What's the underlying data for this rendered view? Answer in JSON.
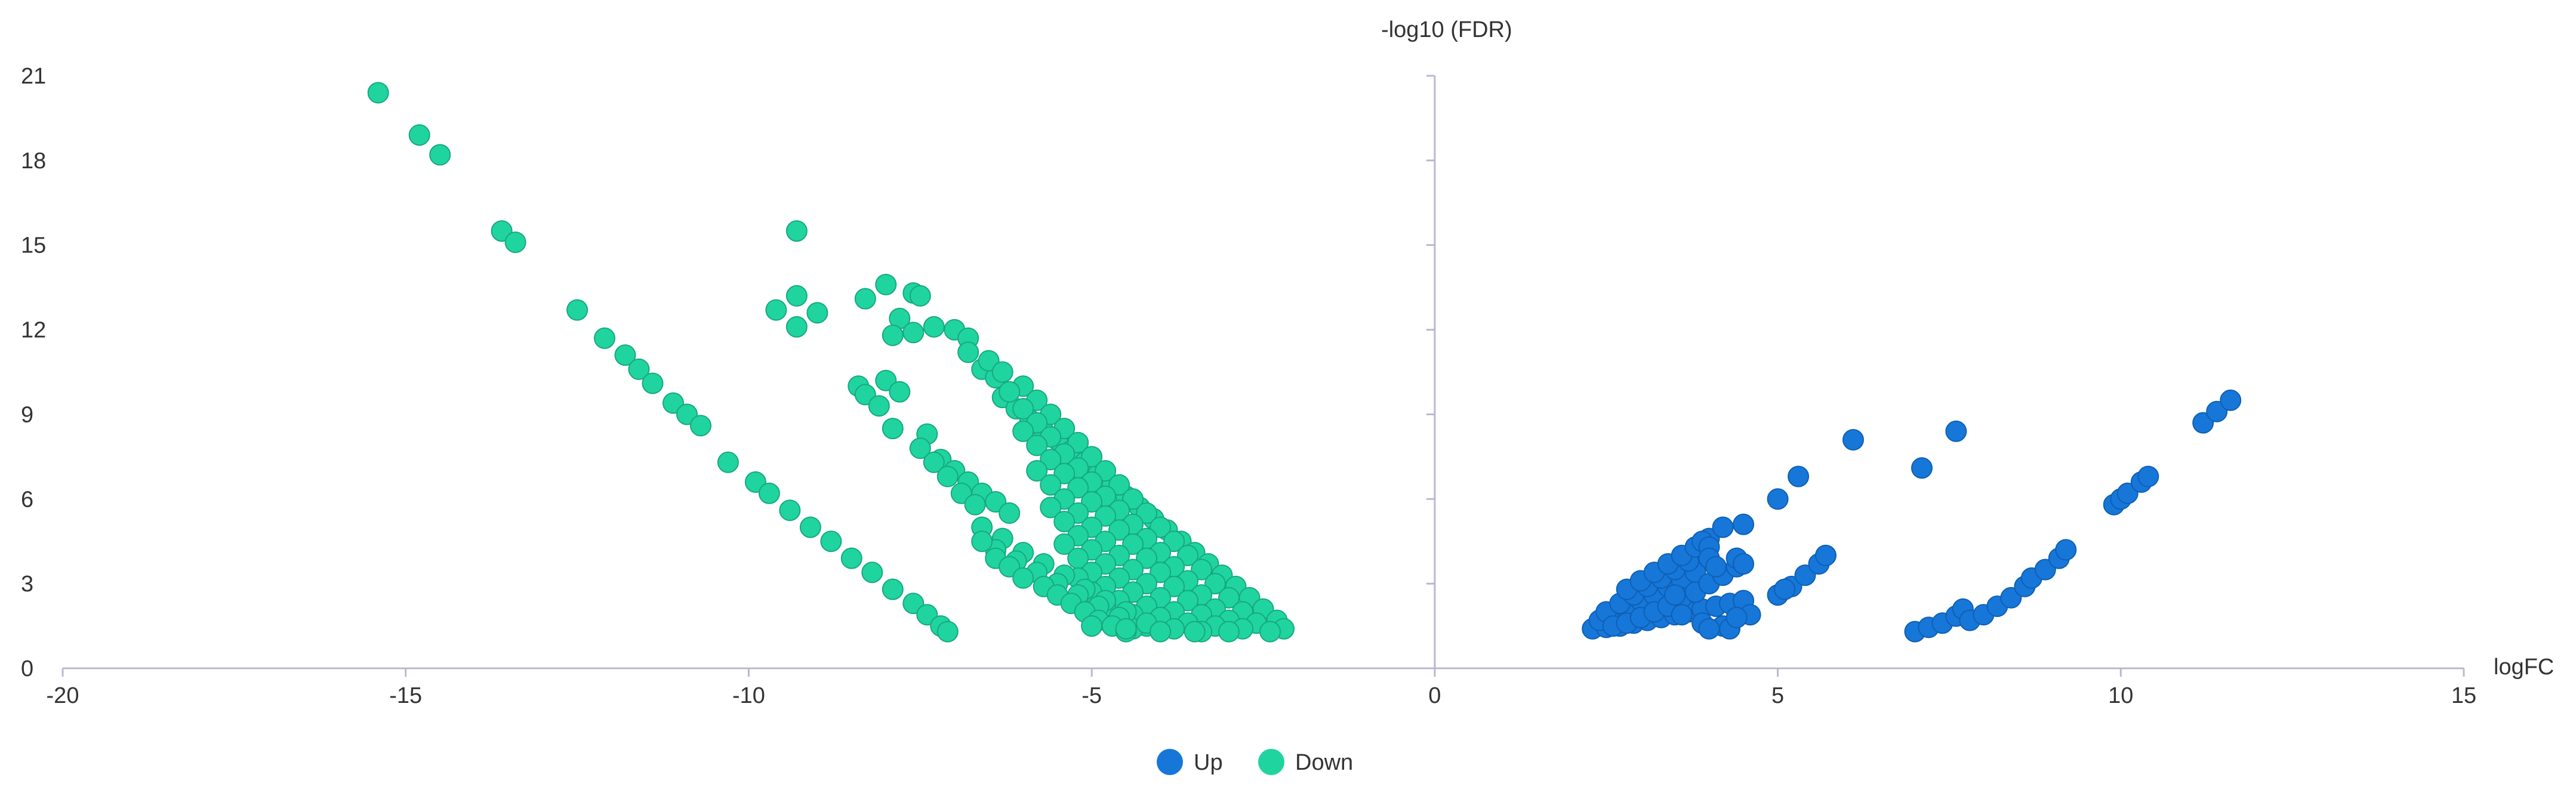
{
  "chart_data": {
    "type": "scatter",
    "xlabel": "logFC",
    "ylabel": "-log10 (FDR)",
    "xlim": [
      -20,
      15
    ],
    "ylim": [
      0,
      21
    ],
    "x_ticks": [
      -20,
      -15,
      -10,
      -5,
      0,
      5,
      10,
      15
    ],
    "y_ticks": [
      0,
      3,
      6,
      9,
      12,
      15,
      18,
      21
    ],
    "grid": false,
    "legend_position": "bottom-center",
    "series": [
      {
        "name": "Up",
        "color": "#1677d9",
        "points": [
          [
            2.3,
            1.4
          ],
          [
            2.5,
            1.45
          ],
          [
            2.7,
            1.5
          ],
          [
            2.9,
            1.6
          ],
          [
            3.1,
            1.7
          ],
          [
            3.3,
            1.8
          ],
          [
            3.5,
            1.9
          ],
          [
            3.7,
            2.0
          ],
          [
            3.9,
            2.1
          ],
          [
            4.1,
            2.2
          ],
          [
            4.3,
            2.3
          ],
          [
            4.5,
            2.4
          ],
          [
            2.4,
            1.7
          ],
          [
            2.6,
            1.9
          ],
          [
            2.8,
            2.1
          ],
          [
            3.0,
            2.4
          ],
          [
            3.2,
            2.6
          ],
          [
            3.4,
            2.9
          ],
          [
            3.6,
            3.1
          ],
          [
            3.8,
            3.4
          ],
          [
            2.5,
            2.0
          ],
          [
            2.7,
            2.3
          ],
          [
            2.9,
            2.6
          ],
          [
            3.1,
            2.9
          ],
          [
            3.3,
            3.2
          ],
          [
            3.5,
            3.5
          ],
          [
            3.7,
            3.8
          ],
          [
            2.6,
            1.5
          ],
          [
            2.8,
            1.6
          ],
          [
            3.0,
            1.8
          ],
          [
            3.2,
            2.0
          ],
          [
            3.4,
            2.2
          ],
          [
            3.6,
            2.5
          ],
          [
            3.8,
            2.7
          ],
          [
            4.0,
            3.0
          ],
          [
            4.2,
            3.3
          ],
          [
            4.4,
            3.6
          ],
          [
            2.8,
            2.8
          ],
          [
            3.0,
            3.1
          ],
          [
            3.2,
            3.4
          ],
          [
            3.4,
            3.7
          ],
          [
            3.6,
            4.0
          ],
          [
            3.8,
            4.3
          ],
          [
            4.0,
            4.6
          ],
          [
            3.9,
            4.5
          ],
          [
            4.0,
            4.3
          ],
          [
            4.0,
            3.9
          ],
          [
            4.1,
            3.6
          ],
          [
            3.5,
            2.6
          ],
          [
            3.6,
            1.9
          ],
          [
            3.9,
            1.6
          ],
          [
            4.2,
            1.5
          ],
          [
            4.3,
            1.4
          ],
          [
            4.0,
            1.4
          ],
          [
            4.5,
            5.1
          ],
          [
            4.2,
            5.0
          ],
          [
            4.4,
            3.9
          ],
          [
            4.5,
            3.7
          ],
          [
            4.6,
            1.9
          ],
          [
            4.4,
            1.8
          ],
          [
            5.0,
            6.0
          ],
          [
            5.3,
            6.8
          ],
          [
            6.1,
            8.1
          ],
          [
            7.6,
            8.4
          ],
          [
            7.1,
            7.1
          ],
          [
            5.0,
            2.6
          ],
          [
            5.2,
            2.9
          ],
          [
            5.4,
            3.3
          ],
          [
            5.6,
            3.7
          ],
          [
            5.7,
            4.0
          ],
          [
            5.1,
            2.8
          ],
          [
            7.0,
            1.3
          ],
          [
            7.2,
            1.45
          ],
          [
            7.4,
            1.6
          ],
          [
            7.6,
            1.85
          ],
          [
            7.7,
            2.1
          ],
          [
            7.8,
            1.7
          ],
          [
            8.0,
            1.9
          ],
          [
            8.2,
            2.2
          ],
          [
            8.4,
            2.5
          ],
          [
            8.6,
            2.9
          ],
          [
            8.7,
            3.2
          ],
          [
            8.9,
            3.5
          ],
          [
            9.1,
            3.9
          ],
          [
            9.2,
            4.2
          ],
          [
            9.9,
            5.8
          ],
          [
            10.0,
            6.0
          ],
          [
            10.1,
            6.2
          ],
          [
            10.3,
            6.6
          ],
          [
            10.4,
            6.8
          ],
          [
            11.2,
            8.7
          ],
          [
            11.4,
            9.1
          ],
          [
            11.6,
            9.5
          ]
        ]
      },
      {
        "name": "Down",
        "color": "#20d4a0",
        "points": [
          [
            -15.4,
            20.4
          ],
          [
            -14.8,
            18.9
          ],
          [
            -14.5,
            18.2
          ],
          [
            -13.6,
            15.5
          ],
          [
            -13.4,
            15.1
          ],
          [
            -12.5,
            12.7
          ],
          [
            -12.1,
            11.7
          ],
          [
            -11.8,
            11.1
          ],
          [
            -11.6,
            10.6
          ],
          [
            -11.4,
            10.1
          ],
          [
            -11.1,
            9.4
          ],
          [
            -10.9,
            9.0
          ],
          [
            -10.7,
            8.6
          ],
          [
            -10.3,
            7.3
          ],
          [
            -9.9,
            6.6
          ],
          [
            -9.7,
            6.2
          ],
          [
            -9.4,
            5.6
          ],
          [
            -9.1,
            5.0
          ],
          [
            -8.8,
            4.5
          ],
          [
            -8.5,
            3.9
          ],
          [
            -8.2,
            3.4
          ],
          [
            -7.9,
            2.8
          ],
          [
            -7.6,
            2.3
          ],
          [
            -7.4,
            1.9
          ],
          [
            -7.2,
            1.5
          ],
          [
            -7.1,
            1.3
          ],
          [
            -9.3,
            15.5
          ],
          [
            -9.6,
            12.7
          ],
          [
            -9.3,
            13.2
          ],
          [
            -9.0,
            12.6
          ],
          [
            -9.3,
            12.1
          ],
          [
            -8.3,
            13.1
          ],
          [
            -8.0,
            13.6
          ],
          [
            -7.8,
            12.4
          ],
          [
            -7.6,
            13.3
          ],
          [
            -7.5,
            13.2
          ],
          [
            -7.9,
            11.8
          ],
          [
            -7.6,
            11.9
          ],
          [
            -7.3,
            12.1
          ],
          [
            -7.0,
            12.0
          ],
          [
            -6.8,
            11.7
          ],
          [
            -8.4,
            10.0
          ],
          [
            -8.3,
            9.7
          ],
          [
            -8.0,
            10.2
          ],
          [
            -7.8,
            9.8
          ],
          [
            -8.1,
            9.3
          ],
          [
            -7.9,
            8.5
          ],
          [
            -7.4,
            8.3
          ],
          [
            -7.2,
            7.4
          ],
          [
            -7.0,
            7.0
          ],
          [
            -6.8,
            6.6
          ],
          [
            -6.6,
            6.2
          ],
          [
            -6.4,
            5.9
          ],
          [
            -6.2,
            5.5
          ],
          [
            -7.5,
            7.8
          ],
          [
            -7.3,
            7.3
          ],
          [
            -7.1,
            6.8
          ],
          [
            -6.9,
            6.2
          ],
          [
            -6.7,
            5.8
          ],
          [
            -6.8,
            11.2
          ],
          [
            -6.6,
            10.6
          ],
          [
            -6.4,
            10.3
          ],
          [
            -6.3,
            9.6
          ],
          [
            -6.1,
            9.2
          ],
          [
            -5.9,
            8.8
          ],
          [
            -5.7,
            8.4
          ],
          [
            -5.5,
            8.1
          ],
          [
            -5.3,
            7.7
          ],
          [
            -5.1,
            7.3
          ],
          [
            -4.9,
            6.9
          ],
          [
            -4.7,
            6.5
          ],
          [
            -4.5,
            6.1
          ],
          [
            -4.3,
            5.7
          ],
          [
            -4.1,
            5.3
          ],
          [
            -3.9,
            4.9
          ],
          [
            -3.7,
            4.5
          ],
          [
            -3.5,
            4.1
          ],
          [
            -3.3,
            3.7
          ],
          [
            -3.1,
            3.3
          ],
          [
            -2.9,
            2.9
          ],
          [
            -2.7,
            2.5
          ],
          [
            -2.5,
            2.1
          ],
          [
            -2.3,
            1.7
          ],
          [
            -2.2,
            1.4
          ],
          [
            -6.5,
            10.9
          ],
          [
            -6.3,
            10.5
          ],
          [
            -6.0,
            10.0
          ],
          [
            -5.8,
            9.5
          ],
          [
            -5.6,
            9.0
          ],
          [
            -5.4,
            8.5
          ],
          [
            -5.2,
            8.0
          ],
          [
            -5.0,
            7.5
          ],
          [
            -4.8,
            7.0
          ],
          [
            -4.6,
            6.5
          ],
          [
            -4.4,
            6.0
          ],
          [
            -4.2,
            5.5
          ],
          [
            -4.0,
            5.0
          ],
          [
            -3.8,
            4.5
          ],
          [
            -3.6,
            4.0
          ],
          [
            -3.4,
            3.5
          ],
          [
            -3.2,
            3.0
          ],
          [
            -3.0,
            2.5
          ],
          [
            -2.8,
            2.0
          ],
          [
            -2.6,
            1.6
          ],
          [
            -6.2,
            9.8
          ],
          [
            -6.0,
            9.2
          ],
          [
            -5.8,
            8.7
          ],
          [
            -5.6,
            8.2
          ],
          [
            -5.4,
            7.6
          ],
          [
            -5.2,
            7.1
          ],
          [
            -5.0,
            6.6
          ],
          [
            -4.8,
            6.1
          ],
          [
            -4.6,
            5.6
          ],
          [
            -4.4,
            5.1
          ],
          [
            -4.2,
            4.6
          ],
          [
            -4.0,
            4.1
          ],
          [
            -3.8,
            3.6
          ],
          [
            -3.6,
            3.1
          ],
          [
            -3.4,
            2.6
          ],
          [
            -3.2,
            2.1
          ],
          [
            -3.0,
            1.7
          ],
          [
            -2.8,
            1.4
          ],
          [
            -6.0,
            8.4
          ],
          [
            -5.8,
            7.9
          ],
          [
            -5.6,
            7.4
          ],
          [
            -5.4,
            6.9
          ],
          [
            -5.2,
            6.4
          ],
          [
            -5.0,
            5.9
          ],
          [
            -4.8,
            5.4
          ],
          [
            -4.6,
            4.9
          ],
          [
            -4.4,
            4.4
          ],
          [
            -4.2,
            3.9
          ],
          [
            -4.0,
            3.4
          ],
          [
            -3.8,
            2.9
          ],
          [
            -3.6,
            2.4
          ],
          [
            -3.4,
            1.9
          ],
          [
            -3.2,
            1.5
          ],
          [
            -5.8,
            7.0
          ],
          [
            -5.6,
            6.5
          ],
          [
            -5.4,
            6.0
          ],
          [
            -5.2,
            5.5
          ],
          [
            -5.0,
            5.0
          ],
          [
            -4.8,
            4.5
          ],
          [
            -4.6,
            4.0
          ],
          [
            -4.4,
            3.5
          ],
          [
            -4.2,
            3.0
          ],
          [
            -4.0,
            2.5
          ],
          [
            -3.8,
            2.0
          ],
          [
            -3.6,
            1.6
          ],
          [
            -3.4,
            1.3
          ],
          [
            -5.6,
            5.7
          ],
          [
            -5.4,
            5.2
          ],
          [
            -5.2,
            4.7
          ],
          [
            -5.0,
            4.2
          ],
          [
            -4.8,
            3.7
          ],
          [
            -4.6,
            3.2
          ],
          [
            -4.4,
            2.7
          ],
          [
            -4.2,
            2.2
          ],
          [
            -4.0,
            1.8
          ],
          [
            -3.8,
            1.4
          ],
          [
            -5.4,
            4.4
          ],
          [
            -5.2,
            3.9
          ],
          [
            -5.0,
            3.4
          ],
          [
            -4.8,
            2.9
          ],
          [
            -4.6,
            2.4
          ],
          [
            -4.4,
            1.9
          ],
          [
            -4.2,
            1.5
          ],
          [
            -5.2,
            3.2
          ],
          [
            -5.0,
            2.7
          ],
          [
            -4.8,
            2.2
          ],
          [
            -4.6,
            1.7
          ],
          [
            -4.4,
            1.4
          ],
          [
            -6.6,
            5.0
          ],
          [
            -6.3,
            4.6
          ],
          [
            -6.0,
            4.1
          ],
          [
            -5.7,
            3.7
          ],
          [
            -5.4,
            3.3
          ],
          [
            -5.1,
            2.8
          ],
          [
            -4.8,
            2.4
          ],
          [
            -4.5,
            2.0
          ],
          [
            -4.2,
            1.6
          ],
          [
            -6.4,
            4.2
          ],
          [
            -6.1,
            3.8
          ],
          [
            -5.8,
            3.4
          ],
          [
            -5.5,
            3.0
          ],
          [
            -5.2,
            2.6
          ],
          [
            -4.9,
            2.2
          ],
          [
            -4.6,
            1.8
          ],
          [
            -6.6,
            4.5
          ],
          [
            -6.4,
            3.9
          ],
          [
            -6.2,
            3.6
          ],
          [
            -6.0,
            3.2
          ],
          [
            -5.7,
            2.9
          ],
          [
            -5.5,
            2.6
          ],
          [
            -5.3,
            2.3
          ],
          [
            -5.1,
            2.0
          ],
          [
            -4.9,
            1.7
          ],
          [
            -4.7,
            1.5
          ],
          [
            -4.5,
            1.3
          ],
          [
            -3.0,
            1.3
          ],
          [
            -3.5,
            1.3
          ],
          [
            -4.0,
            1.3
          ],
          [
            -4.5,
            1.4
          ],
          [
            -5.0,
            1.5
          ],
          [
            -2.4,
            1.3
          ]
        ]
      }
    ]
  }
}
